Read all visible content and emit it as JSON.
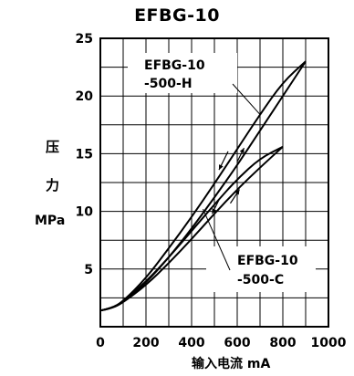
{
  "chart_data": {
    "type": "line",
    "title": "EFBG-10",
    "ylabel": [
      "压",
      "力",
      "MPa"
    ],
    "xlabel": "输入电流  mA",
    "xlim": [
      0,
      1000
    ],
    "ylim": [
      0,
      25
    ],
    "x_ticks": [
      0,
      200,
      400,
      600,
      800,
      1000
    ],
    "y_ticks": [
      5,
      10,
      15,
      20,
      25
    ],
    "grid": true,
    "series": [
      {
        "name": "EFBG-10 -500-H",
        "up": {
          "x": [
            0,
            50,
            100,
            200,
            300,
            400,
            500,
            600,
            700,
            800,
            900
          ],
          "y": [
            1.4,
            1.6,
            2.1,
            3.8,
            6.0,
            8.5,
            11.2,
            14.0,
            17.0,
            20.0,
            23.0
          ]
        },
        "down": {
          "x": [
            0,
            50,
            100,
            200,
            300,
            400,
            500,
            600,
            700,
            800,
            900
          ],
          "y": [
            1.4,
            1.6,
            2.2,
            4.2,
            6.8,
            9.5,
            12.4,
            15.4,
            18.4,
            21.2,
            23.0
          ]
        }
      },
      {
        "name": "EFBG-10 -500-C",
        "up": {
          "x": [
            0,
            50,
            100,
            200,
            300,
            400,
            500,
            600,
            700,
            800
          ],
          "y": [
            1.4,
            1.6,
            2.1,
            3.6,
            5.5,
            7.6,
            9.8,
            11.9,
            13.8,
            15.6
          ]
        },
        "down": {
          "x": [
            0,
            50,
            100,
            200,
            300,
            400,
            500,
            600,
            700,
            800
          ],
          "y": [
            1.4,
            1.6,
            2.2,
            3.9,
            6.0,
            8.3,
            10.6,
            12.8,
            14.6,
            15.6
          ]
        }
      }
    ],
    "annotations": [
      {
        "lines": [
          "EFBG-10",
          "-500-H"
        ]
      },
      {
        "lines": [
          "EFBG-10",
          "-500-C"
        ]
      }
    ],
    "colors": {
      "line": "#000000",
      "grid": "#000000",
      "background": "#ffffff"
    }
  }
}
